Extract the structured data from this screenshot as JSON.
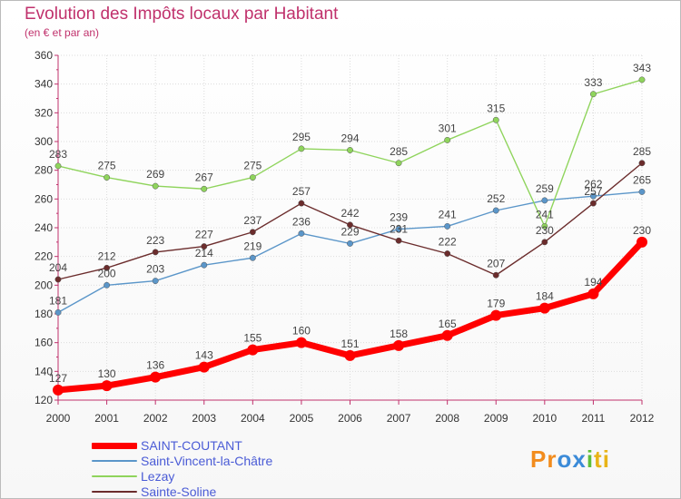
{
  "title": "Evolution des Impôts locaux par Habitant",
  "subtitle": "(en € et par an)",
  "logo": {
    "text": "Proxiti",
    "colors": [
      "#f28c1e",
      "#3c8bd8",
      "#5fbf3a",
      "#e8b418"
    ]
  },
  "chart_data": {
    "type": "line",
    "title": "Evolution des Impôts locaux par Habitant",
    "subtitle": "(en € et par an)",
    "xlabel": "",
    "ylabel": "",
    "x": [
      2000,
      2001,
      2002,
      2003,
      2004,
      2005,
      2006,
      2007,
      2008,
      2009,
      2010,
      2011,
      2012
    ],
    "ylim": [
      120,
      360
    ],
    "yticks": [
      120,
      140,
      160,
      180,
      200,
      220,
      240,
      260,
      280,
      300,
      320,
      340,
      360
    ],
    "grid": "horizontal",
    "legend_position": "bottom-left",
    "series": [
      {
        "name": "Saint-Vincent-la-Châtre",
        "color": "#5b96c9",
        "stroke_width": 1.4,
        "point_radius": 3.2,
        "values": [
          181,
          200,
          203,
          214,
          219,
          236,
          229,
          239,
          241,
          252,
          259,
          262,
          265
        ]
      },
      {
        "name": "Lezay",
        "color": "#8fd45c",
        "stroke_width": 1.4,
        "point_radius": 3.2,
        "values": [
          283,
          275,
          269,
          267,
          275,
          295,
          294,
          285,
          301,
          315,
          241,
          333,
          343
        ]
      },
      {
        "name": "Sainte-Soline",
        "color": "#6b2c2c",
        "stroke_width": 1.4,
        "point_radius": 3.2,
        "values": [
          204,
          212,
          223,
          227,
          237,
          257,
          242,
          231,
          222,
          207,
          230,
          257,
          285
        ]
      },
      {
        "name": "SAINT-COUTANT",
        "color": "#ff0000",
        "stroke_width": 7,
        "point_radius": 6,
        "values": [
          127,
          130,
          136,
          143,
          155,
          160,
          151,
          158,
          165,
          179,
          184,
          194,
          230
        ]
      }
    ],
    "legend_order": [
      "SAINT-COUTANT",
      "Saint-Vincent-la-Châtre",
      "Lezay",
      "Sainte-Soline"
    ]
  }
}
